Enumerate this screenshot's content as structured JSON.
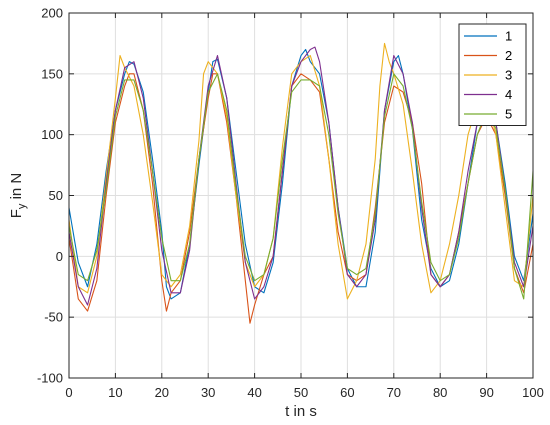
{
  "chart_data": {
    "type": "line",
    "title": "",
    "xlabel": "t in s",
    "ylabel_main": "F",
    "ylabel_sub": "y",
    "ylabel_unit": " in N",
    "xlim": [
      0,
      100
    ],
    "ylim": [
      -100,
      200
    ],
    "xticks": [
      0,
      10,
      20,
      30,
      40,
      50,
      60,
      70,
      80,
      90,
      100
    ],
    "yticks": [
      -100,
      -50,
      0,
      50,
      100,
      150,
      200
    ],
    "grid": true,
    "legend_position": "top-right",
    "series": [
      {
        "name": "1",
        "color": "#0072BD",
        "x": [
          0,
          2,
          4,
          6,
          8,
          10,
          12,
          13,
          14,
          16,
          18,
          20,
          21,
          22,
          24,
          26,
          28,
          30,
          31,
          32,
          34,
          36,
          38,
          40,
          42,
          44,
          46,
          48,
          50,
          51,
          52,
          54,
          56,
          58,
          60,
          62,
          64,
          66,
          68,
          70,
          71,
          72,
          74,
          76,
          78,
          80,
          82,
          84,
          86,
          88,
          89,
          90,
          92,
          94,
          96,
          98,
          100
        ],
        "y": [
          40,
          -5,
          -25,
          10,
          70,
          120,
          150,
          160,
          158,
          135,
          80,
          20,
          -25,
          -35,
          -30,
          10,
          75,
          135,
          160,
          162,
          130,
          70,
          10,
          -25,
          -30,
          -5,
          60,
          140,
          165,
          170,
          160,
          150,
          110,
          40,
          -10,
          -25,
          -25,
          20,
          120,
          160,
          165,
          150,
          105,
          30,
          -10,
          -25,
          -20,
          10,
          60,
          110,
          125,
          130,
          110,
          60,
          0,
          -20,
          35
        ]
      },
      {
        "name": "2",
        "color": "#D95319",
        "x": [
          0,
          2,
          4,
          6,
          8,
          10,
          12,
          13,
          14,
          16,
          18,
          20,
          21,
          22,
          24,
          26,
          28,
          30,
          31,
          32,
          34,
          36,
          38,
          39,
          40,
          42,
          44,
          46,
          48,
          50,
          52,
          54,
          56,
          58,
          60,
          62,
          64,
          66,
          68,
          70,
          72,
          74,
          76,
          78,
          80,
          82,
          84,
          86,
          88,
          90,
          92,
          94,
          96,
          98,
          100
        ],
        "y": [
          15,
          -35,
          -45,
          -20,
          50,
          110,
          140,
          150,
          150,
          120,
          60,
          -20,
          -45,
          -30,
          -20,
          20,
          80,
          130,
          150,
          150,
          110,
          50,
          -20,
          -55,
          -40,
          -15,
          0,
          70,
          140,
          150,
          145,
          135,
          80,
          20,
          -15,
          -20,
          -15,
          40,
          110,
          140,
          135,
          110,
          60,
          -15,
          -25,
          -15,
          20,
          60,
          100,
          115,
          100,
          50,
          -10,
          -30,
          10
        ]
      },
      {
        "name": "3",
        "color": "#EDB120",
        "x": [
          0,
          2,
          4,
          6,
          8,
          10,
          11,
          12,
          14,
          16,
          18,
          20,
          22,
          24,
          26,
          28,
          29,
          30,
          32,
          34,
          36,
          38,
          40,
          42,
          44,
          46,
          48,
          50,
          52,
          54,
          56,
          58,
          60,
          62,
          64,
          66,
          67,
          68,
          69,
          70,
          72,
          74,
          76,
          78,
          80,
          82,
          84,
          86,
          88,
          90,
          92,
          94,
          96,
          98,
          100
        ],
        "y": [
          30,
          -25,
          -30,
          0,
          65,
          130,
          165,
          155,
          140,
          100,
          45,
          -15,
          -25,
          -15,
          25,
          95,
          150,
          160,
          150,
          115,
          50,
          -5,
          -25,
          -15,
          15,
          90,
          150,
          160,
          165,
          140,
          80,
          10,
          -35,
          -20,
          10,
          80,
          140,
          175,
          160,
          150,
          125,
          70,
          10,
          -30,
          -20,
          10,
          50,
          100,
          125,
          130,
          100,
          40,
          -20,
          -25,
          50
        ]
      },
      {
        "name": "4",
        "color": "#7E2F8E",
        "x": [
          0,
          2,
          4,
          6,
          8,
          10,
          12,
          14,
          16,
          18,
          20,
          22,
          24,
          26,
          28,
          30,
          32,
          34,
          36,
          38,
          40,
          42,
          44,
          46,
          48,
          50,
          52,
          53,
          54,
          56,
          58,
          60,
          62,
          64,
          66,
          68,
          70,
          72,
          74,
          76,
          78,
          80,
          82,
          84,
          86,
          88,
          90,
          92,
          94,
          96,
          98,
          100
        ],
        "y": [
          20,
          -25,
          -40,
          -10,
          60,
          120,
          155,
          160,
          130,
          70,
          5,
          -30,
          -30,
          5,
          80,
          140,
          165,
          130,
          60,
          -5,
          -35,
          -25,
          0,
          70,
          140,
          160,
          170,
          172,
          160,
          110,
          40,
          -15,
          -25,
          -15,
          30,
          120,
          165,
          150,
          110,
          40,
          -15,
          -25,
          -15,
          20,
          70,
          110,
          125,
          110,
          55,
          -5,
          -25,
          25
        ]
      },
      {
        "name": "5",
        "color": "#77AC30",
        "x": [
          0,
          2,
          4,
          6,
          8,
          10,
          12,
          14,
          16,
          18,
          20,
          22,
          24,
          26,
          28,
          30,
          32,
          34,
          36,
          38,
          40,
          42,
          44,
          46,
          48,
          50,
          52,
          54,
          56,
          58,
          60,
          62,
          64,
          66,
          68,
          70,
          72,
          74,
          76,
          78,
          80,
          82,
          84,
          86,
          88,
          90,
          92,
          94,
          96,
          98,
          100
        ],
        "y": [
          25,
          -15,
          -20,
          5,
          55,
          115,
          145,
          145,
          120,
          70,
          15,
          -20,
          -20,
          10,
          80,
          135,
          150,
          120,
          55,
          0,
          -20,
          -15,
          15,
          80,
          135,
          145,
          145,
          140,
          100,
          35,
          -10,
          -15,
          -10,
          35,
          115,
          150,
          140,
          105,
          45,
          -5,
          -20,
          -15,
          15,
          60,
          100,
          120,
          105,
          55,
          -10,
          -35,
          70
        ]
      }
    ]
  }
}
